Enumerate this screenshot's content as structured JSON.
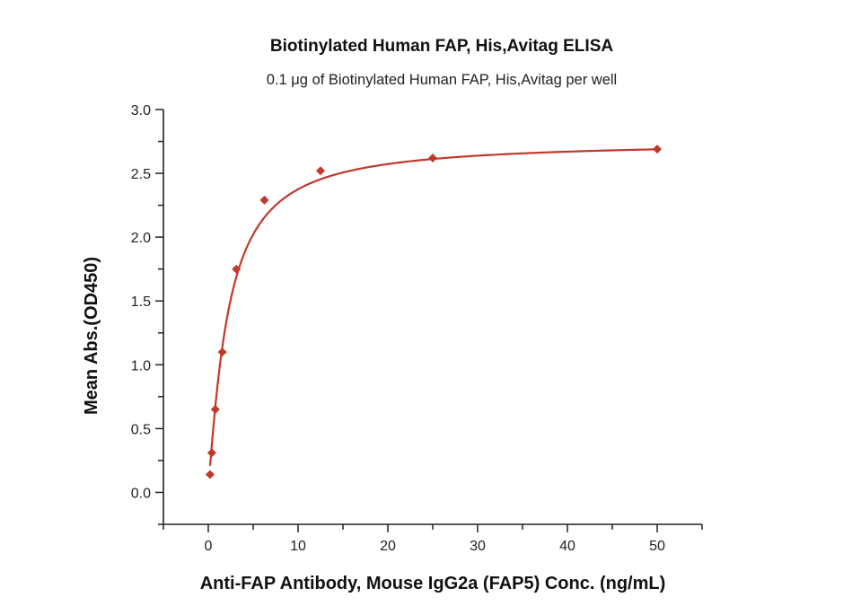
{
  "chart_data": {
    "type": "scatter",
    "title": "Biotinylated Human FAP, His,Avitag ELISA",
    "subtitle": "0.1 μg of Biotinylated Human FAP, His,Avitag per well",
    "xlabel": "Anti-FAP Antibody, Mouse IgG2a (FAP5) Conc. (ng/mL)",
    "ylabel": "Mean Abs.(OD450)",
    "xlim": [
      -5,
      55
    ],
    "ylim": [
      -0.25,
      3.0
    ],
    "xticks": [
      0,
      10,
      20,
      30,
      40,
      50
    ],
    "xtick_labels": [
      "0",
      "10",
      "20",
      "30",
      "40",
      "50"
    ],
    "yticks": [
      0.0,
      0.5,
      1.0,
      1.5,
      2.0,
      2.5,
      3.0
    ],
    "ytick_labels": [
      "0.0",
      "0.5",
      "1.0",
      "1.5",
      "2.0",
      "2.5",
      "3.0"
    ],
    "grid": false,
    "series": [
      {
        "name": "FAP5",
        "color": "#c0392b",
        "marker": "diamond",
        "x": [
          0.195,
          0.39,
          0.78,
          1.5625,
          3.125,
          6.25,
          12.5,
          25,
          50
        ],
        "y": [
          0.14,
          0.31,
          0.65,
          1.1,
          1.75,
          2.29,
          2.52,
          2.62,
          2.69
        ],
        "fit": {
          "model": "4PL",
          "A": 0.07,
          "B": 1.2,
          "C": 2.2,
          "D": 2.75
        }
      }
    ]
  }
}
